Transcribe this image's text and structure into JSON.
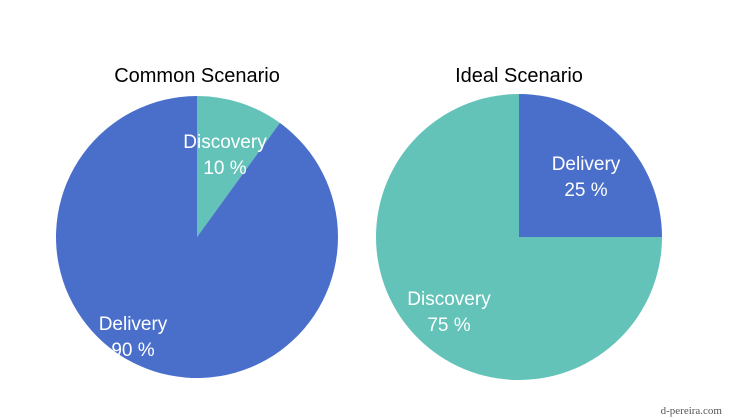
{
  "colors": {
    "delivery": "#4A6FCB",
    "discovery": "#63C3B8",
    "label_text": "#ffffff",
    "title_text": "#000000"
  },
  "chart_data": [
    {
      "type": "pie",
      "title": "Common Scenario",
      "start": "12 o'clock",
      "direction": "clockwise",
      "slices": [
        {
          "name": "Discovery",
          "value": 10,
          "value_label": "10 %",
          "color_key": "discovery"
        },
        {
          "name": "Delivery",
          "value": 90,
          "value_label": "90 %",
          "color_key": "delivery"
        }
      ]
    },
    {
      "type": "pie",
      "title": "Ideal Scenario",
      "start": "12 o'clock",
      "direction": "clockwise",
      "slices": [
        {
          "name": "Delivery",
          "value": 25,
          "value_label": "25 %",
          "color_key": "delivery"
        },
        {
          "name": "Discovery",
          "value": 75,
          "value_label": "75 %",
          "color_key": "discovery"
        }
      ]
    }
  ],
  "watermark": "d-pereira.com"
}
